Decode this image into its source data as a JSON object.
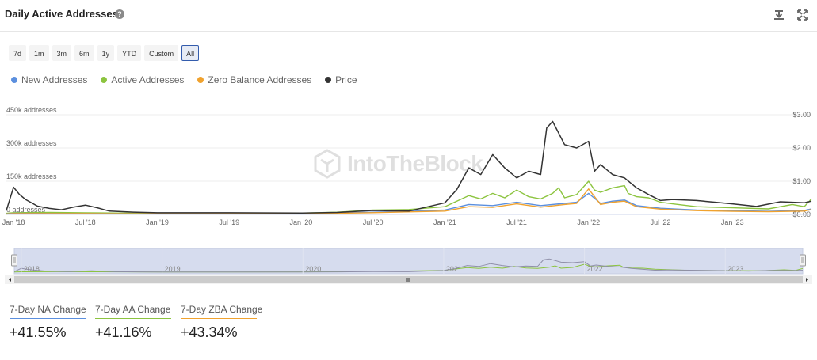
{
  "header": {
    "title": "Daily Active Addresses",
    "help_glyph": "?",
    "download_icon": "download-icon",
    "expand_icon": "expand-icon"
  },
  "ranges": [
    {
      "label": "7d",
      "active": false
    },
    {
      "label": "1m",
      "active": false
    },
    {
      "label": "3m",
      "active": false
    },
    {
      "label": "6m",
      "active": false
    },
    {
      "label": "1y",
      "active": false
    },
    {
      "label": "YTD",
      "active": false
    },
    {
      "label": "Custom",
      "active": false
    },
    {
      "label": "All",
      "active": true
    }
  ],
  "legend": [
    {
      "name": "New Addresses",
      "color": "#5b8fde"
    },
    {
      "name": "Active Addresses",
      "color": "#8cc43f"
    },
    {
      "name": "Zero Balance Addresses",
      "color": "#f0a22e"
    },
    {
      "name": "Price",
      "color": "#333333"
    }
  ],
  "watermark": "IntoTheBlock",
  "chart_data": {
    "type": "line",
    "x_ticks": [
      "Jan '18",
      "Jul '18",
      "Jan '19",
      "Jul '19",
      "Jan '20",
      "Jul '20",
      "Jan '21",
      "Jul '21",
      "Jan '22",
      "Jul '22",
      "Jan '23"
    ],
    "y_left_ticks": [
      "0 addresses",
      "150k addresses",
      "300k addresses",
      "450k addresses"
    ],
    "y_right_ticks": [
      "$0.00",
      "$1.00",
      "$2.00",
      "$3.00"
    ],
    "ylim_left": [
      0,
      450000
    ],
    "ylim_right": [
      0,
      3
    ],
    "grid": true,
    "legend_position": "top-left",
    "x_unit": "months since Jan 2018",
    "xlim": [
      -0.6,
      66.6
    ],
    "series": [
      {
        "name": "Active Addresses",
        "color": "#8cc43f",
        "axis": "left",
        "points": [
          [
            -0.6,
            5000
          ],
          [
            0,
            8000
          ],
          [
            3,
            9000
          ],
          [
            6,
            7000
          ],
          [
            9,
            6000
          ],
          [
            12,
            5000
          ],
          [
            18,
            5000
          ],
          [
            24,
            6000
          ],
          [
            27,
            10000
          ],
          [
            30,
            20000
          ],
          [
            33,
            22000
          ],
          [
            36,
            35000
          ],
          [
            37,
            60000
          ],
          [
            38,
            85000
          ],
          [
            39,
            70000
          ],
          [
            40,
            95000
          ],
          [
            41,
            75000
          ],
          [
            42,
            110000
          ],
          [
            43,
            80000
          ],
          [
            44,
            70000
          ],
          [
            45,
            95000
          ],
          [
            45.5,
            120000
          ],
          [
            46,
            75000
          ],
          [
            47,
            90000
          ],
          [
            48,
            150000
          ],
          [
            48.5,
            110000
          ],
          [
            49,
            100000
          ],
          [
            50,
            120000
          ],
          [
            51,
            130000
          ],
          [
            51.3,
            95000
          ],
          [
            52,
            80000
          ],
          [
            53,
            75000
          ],
          [
            54,
            55000
          ],
          [
            55,
            48000
          ],
          [
            57,
            35000
          ],
          [
            60,
            30000
          ],
          [
            63,
            25000
          ],
          [
            65,
            45000
          ],
          [
            66,
            35000
          ],
          [
            66.6,
            70000
          ]
        ]
      },
      {
        "name": "New Addresses",
        "color": "#5b8fde",
        "axis": "left",
        "points": [
          [
            -0.6,
            3000
          ],
          [
            0,
            5000
          ],
          [
            6,
            4000
          ],
          [
            12,
            3000
          ],
          [
            24,
            3500
          ],
          [
            30,
            10000
          ],
          [
            36,
            20000
          ],
          [
            38,
            45000
          ],
          [
            40,
            40000
          ],
          [
            42,
            55000
          ],
          [
            44,
            40000
          ],
          [
            46,
            50000
          ],
          [
            47,
            55000
          ],
          [
            48,
            95000
          ],
          [
            49,
            50000
          ],
          [
            50,
            60000
          ],
          [
            51,
            65000
          ],
          [
            52,
            40000
          ],
          [
            54,
            28000
          ],
          [
            57,
            20000
          ],
          [
            60,
            17000
          ],
          [
            63,
            14000
          ],
          [
            66,
            18000
          ],
          [
            66.6,
            25000
          ]
        ]
      },
      {
        "name": "Zero Balance Addresses",
        "color": "#f0a22e",
        "axis": "left",
        "points": [
          [
            -0.6,
            2000
          ],
          [
            0,
            4000
          ],
          [
            6,
            3500
          ],
          [
            12,
            2500
          ],
          [
            24,
            3000
          ],
          [
            30,
            8000
          ],
          [
            36,
            15000
          ],
          [
            38,
            35000
          ],
          [
            40,
            32000
          ],
          [
            42,
            48000
          ],
          [
            44,
            33000
          ],
          [
            46,
            45000
          ],
          [
            47,
            50000
          ],
          [
            48,
            115000
          ],
          [
            49,
            45000
          ],
          [
            50,
            55000
          ],
          [
            51,
            60000
          ],
          [
            52,
            35000
          ],
          [
            54,
            24000
          ],
          [
            57,
            17000
          ],
          [
            60,
            14000
          ],
          [
            63,
            12000
          ],
          [
            66,
            15000
          ],
          [
            66.6,
            22000
          ]
        ]
      },
      {
        "name": "Price",
        "color": "#333333",
        "axis": "right",
        "points": [
          [
            -0.6,
            0.12
          ],
          [
            0,
            0.82
          ],
          [
            0.5,
            0.6
          ],
          [
            1,
            0.45
          ],
          [
            2,
            0.25
          ],
          [
            3,
            0.18
          ],
          [
            4,
            0.14
          ],
          [
            5,
            0.22
          ],
          [
            6,
            0.28
          ],
          [
            7,
            0.2
          ],
          [
            8,
            0.1
          ],
          [
            10,
            0.07
          ],
          [
            12,
            0.05
          ],
          [
            18,
            0.05
          ],
          [
            24,
            0.04
          ],
          [
            27,
            0.06
          ],
          [
            30,
            0.12
          ],
          [
            33,
            0.1
          ],
          [
            36,
            0.35
          ],
          [
            37,
            0.75
          ],
          [
            38,
            1.4
          ],
          [
            39,
            1.2
          ],
          [
            40,
            1.8
          ],
          [
            41,
            1.4
          ],
          [
            42,
            1.1
          ],
          [
            43,
            1.3
          ],
          [
            44,
            1.2
          ],
          [
            44.5,
            2.6
          ],
          [
            45,
            2.8
          ],
          [
            46,
            2.1
          ],
          [
            47,
            2.0
          ],
          [
            48,
            2.2
          ],
          [
            48.5,
            1.3
          ],
          [
            49,
            1.5
          ],
          [
            50,
            1.2
          ],
          [
            51,
            1.1
          ],
          [
            52,
            0.8
          ],
          [
            53,
            0.6
          ],
          [
            54,
            0.42
          ],
          [
            55,
            0.45
          ],
          [
            57,
            0.42
          ],
          [
            60,
            0.32
          ],
          [
            62,
            0.24
          ],
          [
            64,
            0.38
          ],
          [
            66,
            0.35
          ],
          [
            66.6,
            0.4
          ]
        ]
      }
    ],
    "navigator": {
      "year_labels": [
        "2018",
        "2019",
        "2020",
        "2021",
        "2022",
        "2023"
      ]
    }
  },
  "kpis": [
    {
      "label": "7-Day NA Change",
      "value": "+41.55%",
      "color": "#5b8fde"
    },
    {
      "label": "7-Day AA Change",
      "value": "+41.16%",
      "color": "#8cc43f"
    },
    {
      "label": "7-Day ZBA Change",
      "value": "+43.34%",
      "color": "#f0a22e"
    }
  ]
}
